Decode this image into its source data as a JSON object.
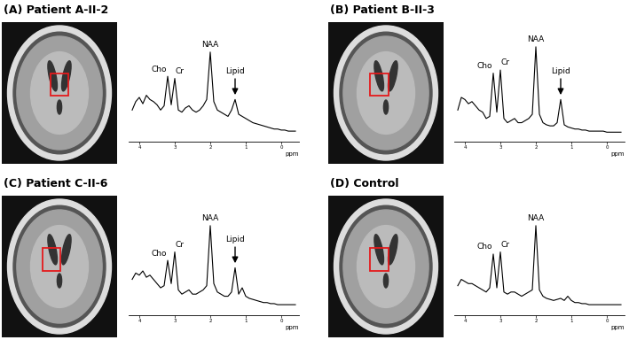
{
  "chart_data": [
    {
      "type": "line",
      "title": "(A) Patient A-II-2",
      "x_label": "ppm",
      "x": [
        4.2,
        4.1,
        4.0,
        3.9,
        3.8,
        3.7,
        3.6,
        3.5,
        3.4,
        3.3,
        3.2,
        3.1,
        3.0,
        2.9,
        2.8,
        2.7,
        2.6,
        2.5,
        2.4,
        2.3,
        2.2,
        2.1,
        2.0,
        1.9,
        1.8,
        1.7,
        1.6,
        1.5,
        1.4,
        1.3,
        1.2,
        1.1,
        1.0,
        0.9,
        0.8,
        0.7,
        0.6,
        0.5,
        0.4,
        0.3,
        0.2,
        0.1,
        0.0,
        -0.1,
        -0.2,
        -0.3,
        -0.4
      ],
      "values": [
        30,
        38,
        42,
        36,
        44,
        40,
        38,
        35,
        30,
        34,
        62,
        35,
        60,
        30,
        28,
        32,
        34,
        30,
        28,
        30,
        34,
        40,
        85,
        38,
        30,
        28,
        26,
        24,
        30,
        40,
        26,
        24,
        22,
        20,
        18,
        17,
        16,
        15,
        14,
        13,
        12,
        12,
        11,
        11,
        10,
        10,
        10
      ],
      "color": "#000000",
      "xlim": [
        4.3,
        -0.5
      ],
      "xticks": [
        4,
        3,
        2,
        1,
        0
      ],
      "ylim": [
        0,
        105
      ],
      "tick_labels": "x",
      "annotations": [
        {
          "text": "Cho",
          "x": 3.2
        },
        {
          "text": "Cr",
          "x": 3.0
        },
        {
          "text": "NAA",
          "x": 2.0
        }
      ],
      "arrows": [
        {
          "text": "Lipid",
          "x": 1.3
        }
      ]
    },
    {
      "type": "line",
      "title": "(B) Patient B-II-3",
      "x_label": "ppm",
      "x": [
        4.2,
        4.1,
        4.0,
        3.9,
        3.8,
        3.7,
        3.6,
        3.5,
        3.4,
        3.3,
        3.2,
        3.1,
        3.0,
        2.9,
        2.8,
        2.7,
        2.6,
        2.5,
        2.4,
        2.3,
        2.2,
        2.1,
        2.0,
        1.9,
        1.8,
        1.7,
        1.6,
        1.5,
        1.4,
        1.3,
        1.2,
        1.1,
        1.0,
        0.9,
        0.8,
        0.7,
        0.6,
        0.5,
        0.4,
        0.3,
        0.2,
        0.1,
        0.0,
        -0.1,
        -0.2,
        -0.3,
        -0.4
      ],
      "values": [
        30,
        42,
        40,
        36,
        38,
        34,
        30,
        28,
        22,
        24,
        65,
        28,
        68,
        22,
        18,
        20,
        22,
        18,
        18,
        20,
        22,
        26,
        90,
        26,
        18,
        16,
        15,
        15,
        18,
        40,
        16,
        14,
        13,
        12,
        12,
        11,
        11,
        10,
        10,
        10,
        10,
        10,
        9,
        9,
        9,
        9,
        9
      ],
      "color": "#000000",
      "xlim": [
        4.3,
        -0.5
      ],
      "xticks": [
        4,
        3,
        2,
        1,
        0
      ],
      "ylim": [
        0,
        105
      ],
      "tick_labels": "x",
      "annotations": [
        {
          "text": "Cho",
          "x": 3.2
        },
        {
          "text": "Cr",
          "x": 3.0
        },
        {
          "text": "NAA",
          "x": 2.0
        }
      ],
      "arrows": [
        {
          "text": "Lipid",
          "x": 1.3
        }
      ]
    },
    {
      "type": "line",
      "title": "(C) Patient C-II-6",
      "x_label": "ppm",
      "x": [
        4.2,
        4.1,
        4.0,
        3.9,
        3.8,
        3.7,
        3.6,
        3.5,
        3.4,
        3.3,
        3.2,
        3.1,
        3.0,
        2.9,
        2.8,
        2.7,
        2.6,
        2.5,
        2.4,
        2.3,
        2.2,
        2.1,
        2.0,
        1.9,
        1.8,
        1.7,
        1.6,
        1.5,
        1.4,
        1.3,
        1.2,
        1.1,
        1.0,
        0.9,
        0.8,
        0.7,
        0.6,
        0.5,
        0.4,
        0.3,
        0.2,
        0.1,
        0.0,
        -0.1,
        -0.2,
        -0.3,
        -0.4
      ],
      "values": [
        34,
        40,
        38,
        42,
        36,
        38,
        34,
        30,
        26,
        28,
        52,
        30,
        60,
        24,
        20,
        22,
        24,
        20,
        20,
        22,
        24,
        28,
        85,
        30,
        22,
        20,
        18,
        18,
        22,
        45,
        20,
        26,
        18,
        16,
        15,
        14,
        13,
        12,
        12,
        11,
        11,
        10,
        10,
        10,
        10,
        10,
        10
      ],
      "color": "#000000",
      "xlim": [
        4.3,
        -0.5
      ],
      "xticks": [
        4,
        3,
        2,
        1,
        0
      ],
      "ylim": [
        0,
        105
      ],
      "tick_labels": "x",
      "annotations": [
        {
          "text": "Cho",
          "x": 3.2
        },
        {
          "text": "Cr",
          "x": 3.0
        },
        {
          "text": "NAA",
          "x": 2.0
        }
      ],
      "arrows": [
        {
          "text": "Lipid",
          "x": 1.3
        }
      ]
    },
    {
      "type": "line",
      "title": "(D) Control",
      "x_label": "ppm",
      "x": [
        4.2,
        4.1,
        4.0,
        3.9,
        3.8,
        3.7,
        3.6,
        3.5,
        3.4,
        3.3,
        3.2,
        3.1,
        3.0,
        2.9,
        2.8,
        2.7,
        2.6,
        2.5,
        2.4,
        2.3,
        2.2,
        2.1,
        2.0,
        1.9,
        1.8,
        1.7,
        1.6,
        1.5,
        1.4,
        1.3,
        1.2,
        1.1,
        1.0,
        0.9,
        0.8,
        0.7,
        0.6,
        0.5,
        0.4,
        0.3,
        0.2,
        0.1,
        0.0,
        -0.1,
        -0.2,
        -0.3,
        -0.4
      ],
      "values": [
        28,
        34,
        32,
        30,
        30,
        28,
        26,
        24,
        22,
        26,
        58,
        26,
        60,
        22,
        20,
        22,
        22,
        20,
        18,
        20,
        22,
        24,
        85,
        24,
        18,
        16,
        15,
        14,
        15,
        16,
        14,
        18,
        14,
        12,
        12,
        11,
        11,
        10,
        10,
        10,
        10,
        10,
        10,
        10,
        10,
        10,
        10
      ],
      "color": "#000000",
      "xlim": [
        4.3,
        -0.5
      ],
      "xticks": [
        4,
        3,
        2,
        1,
        0
      ],
      "ylim": [
        0,
        105
      ],
      "tick_labels": "x",
      "annotations": [
        {
          "text": "Cho",
          "x": 3.2
        },
        {
          "text": "Cr",
          "x": 3.0
        },
        {
          "text": "NAA",
          "x": 2.0
        }
      ],
      "arrows": []
    }
  ]
}
